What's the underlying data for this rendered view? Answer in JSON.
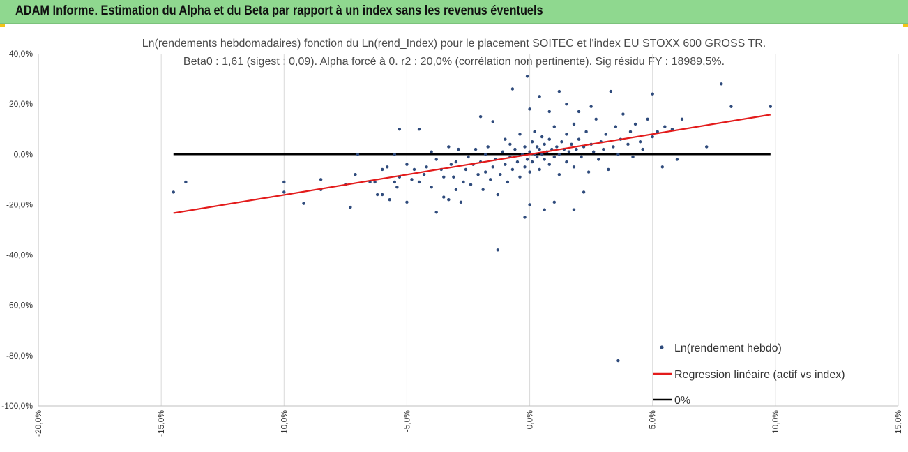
{
  "banner": {
    "title": "ADAM Informe. Estimation du Alpha et du Beta par rapport à un index sans les revenus éventuels"
  },
  "colors": {
    "banner_bg": "#8fd88f",
    "points": "#2f4b7c",
    "regression": "#e31b1b",
    "zero_line": "#000000",
    "grid": "#d9d9d9"
  },
  "chart_data": {
    "type": "scatter",
    "title": "Ln(rendements hebdomadaires) fonction du Ln(rend_Index) pour le placement SOITEC et l'index EU STOXX 600 GROSS TR.",
    "subtitle": "Beta0 : 1,61 (sigest : 0,09). Alpha forcé à 0. r2 : 20,0% (corrélation non pertinente). Sig résidu FY : 18989,5%.",
    "xlim": [
      -0.2,
      0.15
    ],
    "ylim": [
      -1.0,
      0.4
    ],
    "x_ticks": [
      -0.2,
      -0.15,
      -0.1,
      -0.05,
      0.0,
      0.05,
      0.1,
      0.15
    ],
    "x_tick_labels": [
      "-20,0%",
      "-15,0%",
      "-10,0%",
      "-5,0%",
      "0,0%",
      "5,0%",
      "10,0%",
      "15,0%"
    ],
    "y_ticks": [
      0.4,
      0.2,
      0.0,
      -0.2,
      -0.4,
      -0.6,
      -0.8,
      -1.0
    ],
    "y_tick_labels": [
      "40,0%",
      "20,0%",
      "0,0%",
      "-20,0%",
      "-40,0%",
      "-60,0%",
      "-80,0%",
      "-100,0%"
    ],
    "grid": "vertical",
    "legend_position": "bottom-right",
    "series": [
      {
        "name": "Ln(rendement hebdo)",
        "kind": "points",
        "color": "#2f4b7c",
        "points": [
          [
            -0.145,
            -0.15
          ],
          [
            -0.14,
            -0.11
          ],
          [
            -0.1,
            -0.11
          ],
          [
            -0.1,
            -0.15
          ],
          [
            -0.092,
            -0.195
          ],
          [
            -0.085,
            -0.14
          ],
          [
            -0.085,
            -0.1
          ],
          [
            -0.075,
            -0.12
          ],
          [
            -0.073,
            -0.21
          ],
          [
            -0.071,
            -0.08
          ],
          [
            -0.07,
            0.0
          ],
          [
            -0.065,
            -0.11
          ],
          [
            -0.063,
            -0.11
          ],
          [
            -0.062,
            -0.16
          ],
          [
            -0.06,
            -0.06
          ],
          [
            -0.06,
            -0.16
          ],
          [
            -0.058,
            -0.05
          ],
          [
            -0.057,
            -0.18
          ],
          [
            -0.055,
            -0.11
          ],
          [
            -0.054,
            -0.13
          ],
          [
            -0.053,
            -0.09
          ],
          [
            -0.05,
            -0.19
          ],
          [
            -0.05,
            -0.04
          ],
          [
            -0.048,
            -0.1
          ],
          [
            -0.047,
            -0.06
          ],
          [
            -0.055,
            0.0
          ],
          [
            -0.053,
            0.1
          ],
          [
            -0.045,
            -0.11
          ],
          [
            -0.043,
            -0.08
          ],
          [
            -0.042,
            -0.05
          ],
          [
            -0.04,
            0.01
          ],
          [
            -0.04,
            -0.13
          ],
          [
            -0.038,
            -0.02
          ],
          [
            -0.045,
            0.1
          ],
          [
            -0.036,
            -0.06
          ],
          [
            -0.035,
            -0.17
          ],
          [
            -0.035,
            -0.09
          ],
          [
            -0.033,
            0.03
          ],
          [
            -0.032,
            -0.04
          ],
          [
            -0.031,
            -0.09
          ],
          [
            -0.03,
            -0.14
          ],
          [
            -0.03,
            -0.03
          ],
          [
            -0.029,
            0.02
          ],
          [
            -0.028,
            -0.19
          ],
          [
            -0.038,
            -0.23
          ],
          [
            -0.033,
            -0.18
          ],
          [
            -0.027,
            -0.11
          ],
          [
            -0.026,
            -0.06
          ],
          [
            -0.025,
            -0.01
          ],
          [
            -0.024,
            -0.12
          ],
          [
            -0.023,
            -0.04
          ],
          [
            -0.022,
            0.02
          ],
          [
            -0.021,
            -0.08
          ],
          [
            -0.02,
            -0.03
          ],
          [
            -0.019,
            -0.14
          ],
          [
            -0.018,
            0.0
          ],
          [
            -0.018,
            -0.07
          ],
          [
            -0.017,
            0.03
          ],
          [
            -0.016,
            -0.1
          ],
          [
            -0.015,
            -0.05
          ],
          [
            -0.014,
            -0.02
          ],
          [
            -0.013,
            -0.16
          ],
          [
            -0.012,
            -0.08
          ],
          [
            -0.011,
            0.01
          ],
          [
            -0.01,
            -0.04
          ],
          [
            -0.01,
            0.06
          ],
          [
            -0.009,
            -0.11
          ],
          [
            -0.008,
            -0.01
          ],
          [
            -0.008,
            0.04
          ],
          [
            -0.007,
            -0.06
          ],
          [
            -0.006,
            0.02
          ],
          [
            -0.005,
            -0.03
          ],
          [
            -0.004,
            -0.09
          ],
          [
            -0.004,
            0.08
          ],
          [
            -0.003,
            0.0
          ],
          [
            -0.002,
            -0.05
          ],
          [
            -0.002,
            0.03
          ],
          [
            -0.001,
            -0.02
          ],
          [
            0.0,
            0.01
          ],
          [
            0.0,
            -0.07
          ],
          [
            0.001,
            0.05
          ],
          [
            0.001,
            -0.03
          ],
          [
            0.002,
            0.0
          ],
          [
            0.002,
            0.09
          ],
          [
            0.003,
            -0.01
          ],
          [
            0.003,
            0.03
          ],
          [
            0.004,
            -0.06
          ],
          [
            0.004,
            0.02
          ],
          [
            0.005,
            0.0
          ],
          [
            0.005,
            0.07
          ],
          [
            0.006,
            -0.02
          ],
          [
            0.006,
            0.04
          ],
          [
            0.007,
            0.01
          ],
          [
            0.008,
            -0.04
          ],
          [
            0.008,
            0.06
          ],
          [
            0.009,
            0.02
          ],
          [
            0.01,
            -0.01
          ],
          [
            0.01,
            0.11
          ],
          [
            0.011,
            0.03
          ],
          [
            0.012,
            0.0
          ],
          [
            0.012,
            -0.08
          ],
          [
            0.013,
            0.05
          ],
          [
            0.014,
            0.02
          ],
          [
            0.015,
            -0.03
          ],
          [
            0.015,
            0.08
          ],
          [
            0.016,
            0.01
          ],
          [
            0.017,
            0.04
          ],
          [
            0.018,
            -0.05
          ],
          [
            0.018,
            0.12
          ],
          [
            0.019,
            0.02
          ],
          [
            0.02,
            0.06
          ],
          [
            0.021,
            -0.01
          ],
          [
            0.022,
            0.03
          ],
          [
            0.023,
            0.09
          ],
          [
            0.024,
            -0.07
          ],
          [
            0.025,
            0.04
          ],
          [
            0.026,
            0.01
          ],
          [
            0.027,
            0.14
          ],
          [
            0.028,
            -0.02
          ],
          [
            0.029,
            0.05
          ],
          [
            0.03,
            0.02
          ],
          [
            0.031,
            0.08
          ],
          [
            0.032,
            -0.06
          ],
          [
            0.033,
            0.25
          ],
          [
            0.034,
            0.03
          ],
          [
            0.035,
            0.11
          ],
          [
            0.036,
            0.0
          ],
          [
            0.037,
            0.06
          ],
          [
            0.038,
            0.16
          ],
          [
            0.04,
            0.04
          ],
          [
            0.041,
            0.09
          ],
          [
            0.042,
            -0.01
          ],
          [
            0.043,
            0.12
          ],
          [
            0.045,
            0.05
          ],
          [
            0.046,
            0.02
          ],
          [
            0.048,
            0.14
          ],
          [
            0.05,
            0.07
          ],
          [
            0.05,
            0.24
          ],
          [
            0.052,
            0.09
          ],
          [
            0.054,
            -0.05
          ],
          [
            0.055,
            0.11
          ],
          [
            0.058,
            0.1
          ],
          [
            0.06,
            -0.02
          ],
          [
            0.062,
            0.14
          ],
          [
            0.072,
            0.03
          ],
          [
            0.078,
            0.28
          ],
          [
            0.082,
            0.19
          ],
          [
            0.098,
            0.19
          ],
          [
            -0.002,
            -0.25
          ],
          [
            0.0,
            -0.2
          ],
          [
            0.006,
            -0.22
          ],
          [
            0.01,
            -0.19
          ],
          [
            0.018,
            -0.22
          ],
          [
            0.022,
            -0.15
          ],
          [
            -0.013,
            -0.38
          ],
          [
            0.036,
            -0.82
          ],
          [
            -0.007,
            0.26
          ],
          [
            -0.001,
            0.31
          ],
          [
            0.012,
            0.25
          ],
          [
            0.004,
            0.23
          ],
          [
            0.0,
            0.18
          ],
          [
            0.015,
            0.2
          ],
          [
            0.025,
            0.19
          ],
          [
            -0.02,
            0.15
          ],
          [
            -0.015,
            0.13
          ],
          [
            0.008,
            0.17
          ],
          [
            0.02,
            0.17
          ]
        ]
      },
      {
        "name": "Regression linéaire (actif vs index)",
        "kind": "line",
        "color": "#e31b1b",
        "x": [
          -0.145,
          0.098
        ],
        "y": [
          -0.2335,
          0.1578
        ]
      },
      {
        "name": "0%",
        "kind": "line",
        "color": "#000000",
        "x": [
          -0.145,
          0.098
        ],
        "y": [
          0.0,
          0.0
        ]
      }
    ]
  }
}
